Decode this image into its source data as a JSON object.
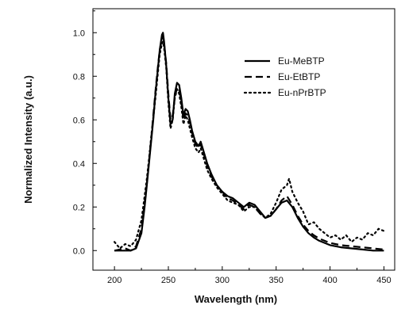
{
  "chart_data": {
    "type": "line",
    "title": "",
    "xlabel": "Wavelength (nm)",
    "ylabel": "Normalized Intensity (a.u.)",
    "xlim": [
      180,
      460
    ],
    "ylim": [
      -0.09,
      1.11
    ],
    "xticks": [
      200,
      250,
      300,
      350,
      400,
      450
    ],
    "yticks": [
      0.0,
      0.2,
      0.4,
      0.6,
      0.8,
      1.0
    ],
    "xtick_labels": [
      "200",
      "250",
      "300",
      "350",
      "400",
      "450"
    ],
    "ytick_labels": [
      "0.0",
      "0.2",
      "0.4",
      "0.6",
      "0.8",
      "1.0"
    ],
    "grid": false,
    "legend_position": "top-right",
    "series": [
      {
        "name": "Eu-MeBTP",
        "style": "solid",
        "color": "#000000",
        "x": [
          200,
          210,
          215,
          220,
          225,
          228,
          230,
          232,
          234,
          236,
          238,
          240,
          242,
          244,
          245,
          246,
          248,
          250,
          252,
          254,
          256,
          258,
          260,
          262,
          264,
          266,
          268,
          270,
          272,
          275,
          278,
          280,
          283,
          286,
          290,
          295,
          300,
          305,
          310,
          315,
          320,
          325,
          330,
          335,
          340,
          345,
          350,
          355,
          360,
          365,
          370,
          375,
          380,
          385,
          390,
          395,
          400,
          410,
          420,
          430,
          440,
          450
        ],
        "y": [
          0.0,
          0.0,
          0.0,
          0.01,
          0.08,
          0.2,
          0.3,
          0.4,
          0.5,
          0.6,
          0.72,
          0.82,
          0.92,
          0.99,
          1.0,
          0.96,
          0.85,
          0.7,
          0.58,
          0.6,
          0.72,
          0.77,
          0.76,
          0.7,
          0.62,
          0.65,
          0.64,
          0.6,
          0.55,
          0.5,
          0.48,
          0.5,
          0.45,
          0.4,
          0.35,
          0.3,
          0.27,
          0.25,
          0.24,
          0.22,
          0.2,
          0.22,
          0.21,
          0.18,
          0.15,
          0.16,
          0.19,
          0.22,
          0.23,
          0.2,
          0.15,
          0.11,
          0.08,
          0.06,
          0.045,
          0.035,
          0.025,
          0.015,
          0.01,
          0.005,
          0.0,
          0.0
        ]
      },
      {
        "name": "Eu-EtBTP",
        "style": "dashed",
        "color": "#000000",
        "x": [
          200,
          210,
          215,
          220,
          225,
          228,
          230,
          232,
          234,
          236,
          238,
          240,
          242,
          244,
          245,
          246,
          248,
          250,
          252,
          254,
          256,
          258,
          260,
          262,
          264,
          266,
          268,
          270,
          272,
          275,
          278,
          280,
          283,
          286,
          290,
          295,
          300,
          305,
          310,
          315,
          320,
          325,
          330,
          335,
          340,
          345,
          350,
          355,
          360,
          365,
          370,
          375,
          380,
          385,
          390,
          395,
          400,
          410,
          420,
          430,
          440,
          450
        ],
        "y": [
          0.0,
          0.01,
          0.0,
          0.02,
          0.1,
          0.22,
          0.31,
          0.41,
          0.51,
          0.62,
          0.73,
          0.83,
          0.92,
          0.97,
          0.98,
          0.95,
          0.86,
          0.72,
          0.6,
          0.62,
          0.7,
          0.75,
          0.74,
          0.68,
          0.6,
          0.63,
          0.62,
          0.59,
          0.54,
          0.49,
          0.47,
          0.49,
          0.44,
          0.39,
          0.34,
          0.3,
          0.27,
          0.24,
          0.23,
          0.21,
          0.19,
          0.21,
          0.2,
          0.17,
          0.15,
          0.16,
          0.19,
          0.23,
          0.25,
          0.21,
          0.16,
          0.12,
          0.09,
          0.07,
          0.055,
          0.045,
          0.035,
          0.025,
          0.02,
          0.015,
          0.01,
          0.005
        ]
      },
      {
        "name": "Eu-nPrBTP",
        "style": "dotted",
        "color": "#000000",
        "x": [
          200,
          205,
          210,
          215,
          220,
          225,
          228,
          230,
          232,
          234,
          236,
          238,
          240,
          242,
          244,
          245,
          246,
          248,
          250,
          252,
          254,
          256,
          258,
          260,
          262,
          264,
          266,
          268,
          270,
          272,
          275,
          278,
          280,
          283,
          286,
          290,
          295,
          300,
          305,
          310,
          315,
          320,
          325,
          330,
          335,
          340,
          345,
          350,
          355,
          360,
          362,
          365,
          370,
          375,
          380,
          385,
          390,
          395,
          400,
          405,
          410,
          415,
          420,
          425,
          430,
          435,
          440,
          445,
          450
        ],
        "y": [
          0.04,
          0.01,
          0.03,
          0.02,
          0.05,
          0.14,
          0.25,
          0.33,
          0.42,
          0.52,
          0.61,
          0.7,
          0.8,
          0.9,
          0.95,
          0.96,
          0.93,
          0.84,
          0.68,
          0.56,
          0.6,
          0.7,
          0.74,
          0.72,
          0.66,
          0.58,
          0.62,
          0.6,
          0.56,
          0.52,
          0.47,
          0.45,
          0.47,
          0.42,
          0.37,
          0.33,
          0.29,
          0.26,
          0.23,
          0.22,
          0.21,
          0.18,
          0.2,
          0.2,
          0.17,
          0.15,
          0.17,
          0.22,
          0.28,
          0.3,
          0.33,
          0.27,
          0.22,
          0.18,
          0.12,
          0.13,
          0.1,
          0.08,
          0.06,
          0.07,
          0.05,
          0.07,
          0.04,
          0.06,
          0.05,
          0.08,
          0.07,
          0.1,
          0.09
        ]
      }
    ]
  }
}
